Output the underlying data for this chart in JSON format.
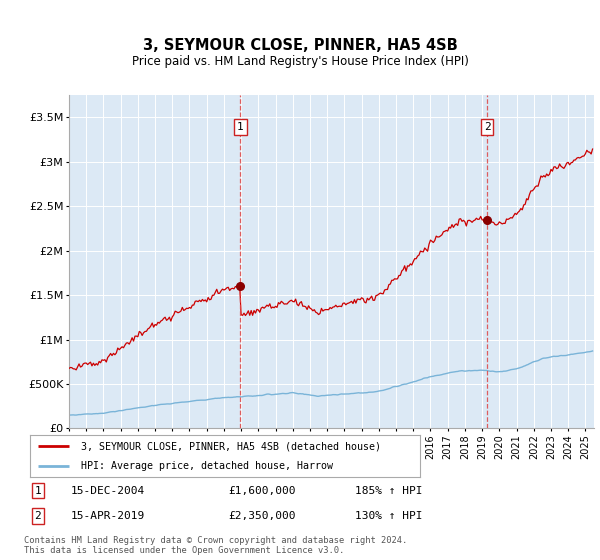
{
  "title": "3, SEYMOUR CLOSE, PINNER, HA5 4SB",
  "subtitle": "Price paid vs. HM Land Registry's House Price Index (HPI)",
  "background_color": "#dce9f5",
  "plot_bg_color": "#dce9f5",
  "hpi_color": "#7ab4d8",
  "price_color": "#cc0000",
  "ylim": [
    0,
    3750000
  ],
  "yticks": [
    0,
    500000,
    1000000,
    1500000,
    2000000,
    2500000,
    3000000,
    3500000
  ],
  "ytick_labels": [
    "£0",
    "£500K",
    "£1M",
    "£1.5M",
    "£2M",
    "£2.5M",
    "£3M",
    "£3.5M"
  ],
  "sale1_year": 2004.96,
  "sale1_price": 1600000,
  "sale1_date": "15-DEC-2004",
  "sale1_pct": "185%",
  "sale2_year": 2019.29,
  "sale2_price": 2350000,
  "sale2_date": "15-APR-2019",
  "sale2_pct": "130%",
  "legend_line1": "3, SEYMOUR CLOSE, PINNER, HA5 4SB (detached house)",
  "legend_line2": "HPI: Average price, detached house, Harrow",
  "footer1": "Contains HM Land Registry data © Crown copyright and database right 2024.",
  "footer2": "This data is licensed under the Open Government Licence v3.0.",
  "xmin": 1995,
  "xmax": 2025.5
}
